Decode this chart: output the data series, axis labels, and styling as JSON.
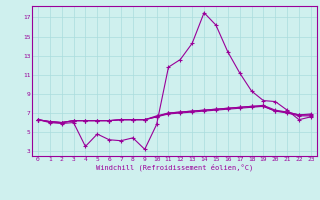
{
  "xlabel": "Windchill (Refroidissement éolien,°C)",
  "bg_color": "#cff0ee",
  "line_color": "#990099",
  "grid_color": "#aadddd",
  "x": [
    0,
    1,
    2,
    3,
    4,
    5,
    6,
    7,
    8,
    9,
    10,
    11,
    12,
    13,
    14,
    15,
    16,
    17,
    18,
    19,
    20,
    21,
    22,
    23
  ],
  "line1": [
    6.3,
    6.1,
    6.0,
    6.2,
    6.2,
    6.2,
    6.2,
    6.3,
    6.3,
    6.3,
    6.6,
    7.0,
    7.1,
    7.2,
    7.3,
    7.4,
    7.5,
    7.6,
    7.7,
    7.7,
    7.2,
    7.1,
    6.8,
    6.8
  ],
  "line2": [
    6.3,
    6.1,
    6.0,
    6.2,
    6.2,
    6.2,
    6.2,
    6.3,
    6.3,
    6.3,
    6.6,
    6.9,
    7.0,
    7.1,
    7.2,
    7.3,
    7.4,
    7.5,
    7.6,
    7.7,
    7.2,
    7.0,
    6.7,
    6.7
  ],
  "line3": [
    6.3,
    6.0,
    5.9,
    6.0,
    3.5,
    4.8,
    4.2,
    4.1,
    4.4,
    3.2,
    5.8,
    11.8,
    12.6,
    14.3,
    17.5,
    16.2,
    13.4,
    11.2,
    9.3,
    8.3,
    8.2,
    7.3,
    6.3,
    6.6
  ],
  "line4": [
    6.3,
    6.1,
    6.0,
    6.2,
    6.2,
    6.2,
    6.2,
    6.3,
    6.3,
    6.3,
    6.7,
    7.0,
    7.1,
    7.2,
    7.3,
    7.4,
    7.5,
    7.6,
    7.7,
    7.8,
    7.3,
    7.1,
    6.8,
    6.9
  ],
  "ylim": [
    2.5,
    18.2
  ],
  "yticks": [
    3,
    5,
    7,
    9,
    11,
    13,
    15,
    17
  ],
  "xticks": [
    0,
    1,
    2,
    3,
    4,
    5,
    6,
    7,
    8,
    9,
    10,
    11,
    12,
    13,
    14,
    15,
    16,
    17,
    18,
    19,
    20,
    21,
    22,
    23
  ]
}
